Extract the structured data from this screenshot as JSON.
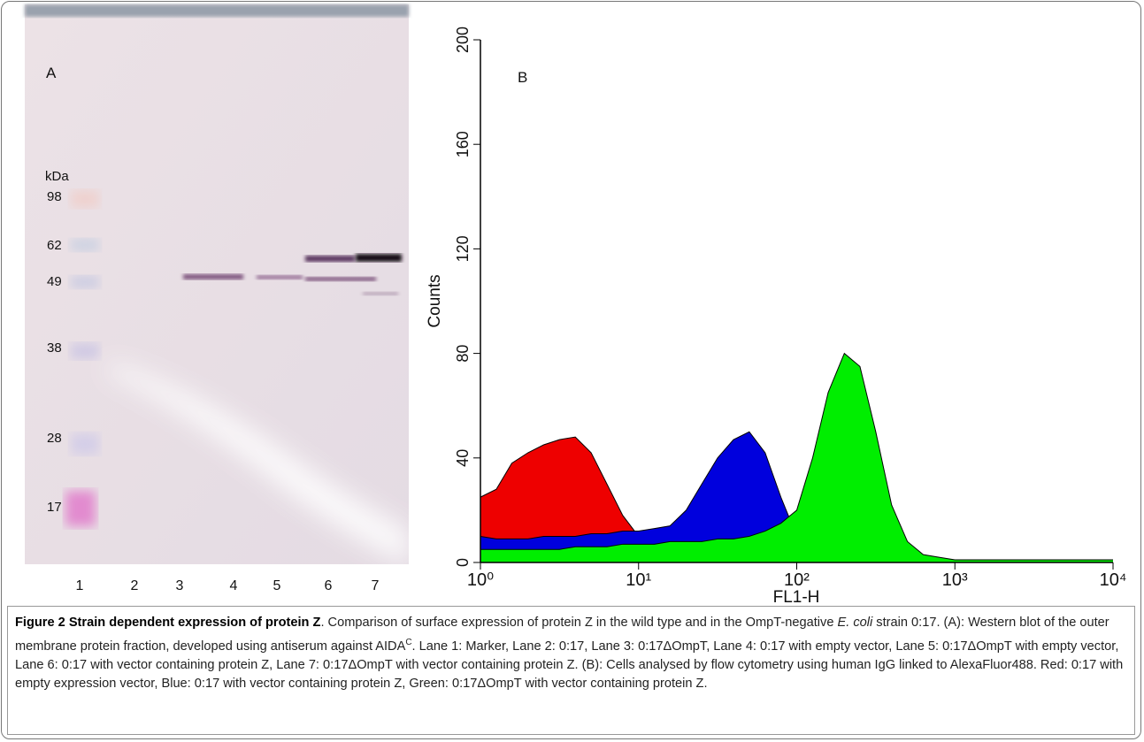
{
  "panel_a": {
    "label": "A",
    "unit": "kDa",
    "markers": [
      "98",
      "62",
      "49",
      "38",
      "28",
      "17"
    ],
    "lanes": [
      "1",
      "2",
      "3",
      "4",
      "5",
      "6",
      "7"
    ]
  },
  "chart_data": {
    "type": "area",
    "panel_label": "B",
    "x_label": "FL1-H",
    "y_label": "Counts",
    "x_scale": "log",
    "x": [
      1,
      1.26,
      1.58,
      2.0,
      2.51,
      3.16,
      3.98,
      5.01,
      6.31,
      7.94,
      10,
      12.6,
      15.8,
      20.0,
      25.1,
      31.6,
      39.8,
      50.1,
      63.1,
      79.4,
      100,
      126,
      158,
      200,
      251,
      316,
      398,
      501,
      631,
      794,
      1000,
      1259,
      1585,
      1995,
      2512,
      3162,
      3981,
      5012,
      6310,
      7943,
      10000
    ],
    "series": [
      {
        "color": "#ee0000",
        "values": [
          25,
          28,
          38,
          42,
          45,
          47,
          48,
          42,
          30,
          18,
          10,
          6,
          4,
          3,
          2,
          1,
          1,
          0,
          0,
          0,
          0,
          0,
          0,
          0,
          0,
          0,
          0,
          0,
          0,
          0,
          0,
          0,
          0,
          0,
          0,
          0,
          0,
          0,
          0,
          0,
          0
        ]
      },
      {
        "color": "#0000dd",
        "values": [
          10,
          9,
          9,
          9,
          10,
          10,
          10,
          11,
          11,
          12,
          12,
          13,
          14,
          20,
          30,
          40,
          47,
          50,
          42,
          25,
          10,
          5,
          3,
          2,
          1,
          0,
          0,
          0,
          0,
          0,
          0,
          0,
          0,
          0,
          0,
          0,
          0,
          0,
          0,
          0,
          0
        ]
      },
      {
        "color": "#00ee00",
        "values": [
          5,
          5,
          5,
          5,
          5,
          5,
          6,
          6,
          6,
          7,
          7,
          7,
          8,
          8,
          8,
          9,
          9,
          10,
          12,
          15,
          20,
          40,
          65,
          80,
          75,
          50,
          22,
          8,
          3,
          2,
          1,
          1,
          1,
          1,
          1,
          1,
          1,
          1,
          1,
          1,
          1
        ]
      }
    ],
    "xlim": [
      1,
      10000
    ],
    "ylim": [
      0,
      200
    ],
    "xticks": [
      {
        "value": 1,
        "label": "10⁰"
      },
      {
        "value": 10,
        "label": "10¹"
      },
      {
        "value": 100,
        "label": "10²"
      },
      {
        "value": 1000,
        "label": "10³"
      },
      {
        "value": 10000,
        "label": "10⁴"
      }
    ],
    "yticks": [
      0,
      40,
      80,
      120,
      160,
      200
    ]
  },
  "caption": {
    "title": "Figure 2 Strain dependent expression of protein Z",
    "segments": [
      ". Comparison of surface expression of protein Z in the wild type and in the OmpT-negative ",
      "E. coli",
      " strain 0:17. (A): Western blot of the outer membrane protein fraction, developed using antiserum against AIDA",
      "C",
      ". Lane 1: Marker, Lane 2: 0:17, Lane 3: 0:17ΔOmpT, Lane 4: 0:17 with empty vector, Lane 5: 0:17ΔOmpT with empty vector, Lane 6: 0:17 with vector containing protein Z, Lane 7: 0:17ΔOmpT with vector containing protein Z. (B): Cells analysed by flow cytometry using human IgG linked to AlexaFluor488. Red: 0:17 with empty expression vector, Blue: 0:17 with vector containing protein Z, Green: 0:17ΔOmpT with vector containing protein Z."
    ]
  }
}
